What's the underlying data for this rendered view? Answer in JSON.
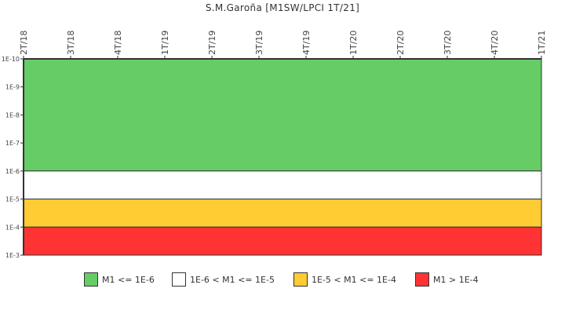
{
  "chart_data": {
    "type": "heatmap",
    "title": "S.M.Garoña [M1SW/LPCI 1T/21]",
    "xlabel": "",
    "ylabel": "",
    "x_ticks": [
      "2T/18",
      "3T/18",
      "4T/18",
      "1T/19",
      "2T/19",
      "3T/19",
      "4T/19",
      "1T/20",
      "2T/20",
      "3T/20",
      "4T/20",
      "1T/21"
    ],
    "y_ticks": [
      "1E-10",
      "1E-9",
      "1E-8",
      "1E-7",
      "1E-6",
      "1E-5",
      "1E-4",
      "1E-3"
    ],
    "y_scale": "log (inverted)",
    "ylim": [
      "1E-10",
      "1E-3"
    ],
    "bands": [
      {
        "label": "M1 <= 1E-6",
        "from": "1E-10",
        "to": "1E-6",
        "color": "#66cc66"
      },
      {
        "label": "1E-6 < M1 <= 1E-5",
        "from": "1E-6",
        "to": "1E-5",
        "color": "#ffffff"
      },
      {
        "label": "1E-5 < M1 <= 1E-4",
        "from": "1E-5",
        "to": "1E-4",
        "color": "#ffcc33"
      },
      {
        "label": "M1 > 1E-4",
        "from": "1E-4",
        "to": "1E-3",
        "color": "#ff3333"
      }
    ],
    "series": [],
    "legend_position": "bottom",
    "grid": false
  },
  "legend": [
    {
      "label": "M1 <= 1E-6",
      "color": "#66cc66"
    },
    {
      "label": "1E-6 < M1 <= 1E-5",
      "color": "#ffffff"
    },
    {
      "label": "1E-5 < M1 <= 1E-4",
      "color": "#ffcc33"
    },
    {
      "label": "M1 > 1E-4",
      "color": "#ff3333"
    }
  ]
}
